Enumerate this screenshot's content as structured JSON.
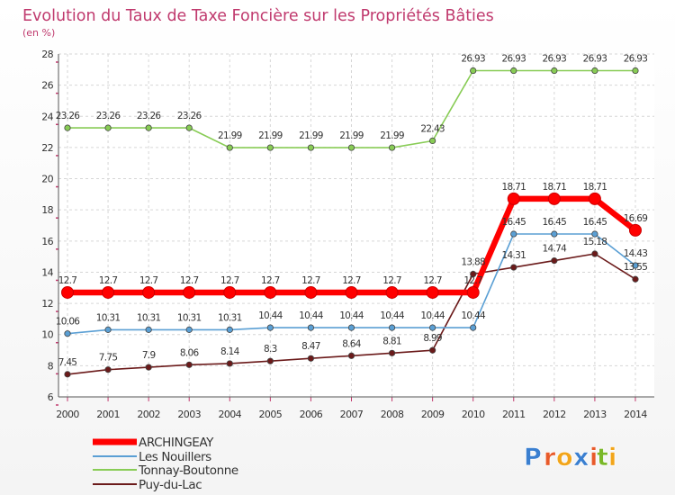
{
  "chart_data": {
    "type": "line",
    "title": "Evolution du Taux de Taxe Foncière sur les Propriétés Bâties",
    "ylabel": "(en %)",
    "xlabel": "",
    "x": [
      "2000",
      "2001",
      "2002",
      "2003",
      "2004",
      "2005",
      "2006",
      "2007",
      "2008",
      "2009",
      "2010",
      "2011",
      "2012",
      "2013",
      "2014"
    ],
    "ylim": [
      6,
      28
    ],
    "yticks": [
      6,
      8,
      10,
      12,
      14,
      16,
      18,
      20,
      22,
      24,
      26,
      28
    ],
    "grid": true,
    "series": [
      {
        "name": "ARCHINGEAY",
        "color": "#ff0000",
        "values": [
          12.7,
          12.7,
          12.7,
          12.7,
          12.7,
          12.7,
          12.7,
          12.7,
          12.7,
          12.7,
          12.7,
          18.71,
          18.71,
          18.71,
          16.69
        ],
        "labels": [
          "12.7",
          "12.7",
          "12.7",
          "12.7",
          "12.7",
          "12.7",
          "12.7",
          "12.7",
          "12.7",
          "12.7",
          "12.7",
          "18.71",
          "18.71",
          "18.71",
          "16.69"
        ]
      },
      {
        "name": "Les Nouillers",
        "color": "#5a9fd4",
        "values": [
          10.06,
          10.31,
          10.31,
          10.31,
          10.31,
          10.44,
          10.44,
          10.44,
          10.44,
          10.44,
          10.44,
          16.45,
          16.45,
          16.45,
          14.43
        ],
        "labels": [
          "10.06",
          "10.31",
          "10.31",
          "10.31",
          "10.31",
          "10.44",
          "10.44",
          "10.44",
          "10.44",
          "10.44",
          "10.44",
          "16.45",
          "16.45",
          "16.45",
          "14.43"
        ]
      },
      {
        "name": "Tonnay-Boutonne",
        "color": "#88cc55",
        "values": [
          23.26,
          23.26,
          23.26,
          23.26,
          21.99,
          21.99,
          21.99,
          21.99,
          21.99,
          22.43,
          26.93,
          26.93,
          26.93,
          26.93,
          26.93
        ],
        "labels": [
          "23.26",
          "23.26",
          "23.26",
          "23.26",
          "21.99",
          "21.99",
          "21.99",
          "21.99",
          "21.99",
          "22.43",
          "26.93",
          "26.93",
          "26.93",
          "26.93",
          "26.93"
        ]
      },
      {
        "name": "Puy-du-Lac",
        "color": "#6b1a1a",
        "values": [
          7.45,
          7.75,
          7.9,
          8.06,
          8.14,
          8.3,
          8.47,
          8.64,
          8.81,
          8.99,
          13.88,
          14.31,
          14.74,
          15.18,
          13.55
        ],
        "labels": [
          "7.45",
          "7.75",
          "7.9",
          "8.06",
          "8.14",
          "8.3",
          "8.47",
          "8.64",
          "8.81",
          "8.99",
          "13.88",
          "14.31",
          "14.74",
          "15.18",
          "13.55"
        ]
      }
    ],
    "legend": "bottom-left"
  },
  "branding": {
    "logo_text": "Proxiti",
    "logo_letters": [
      "P",
      "r",
      "o",
      "x",
      "i",
      "t",
      "i"
    ],
    "logo_colors": [
      "#3a7fd0",
      "#e85a2a",
      "#f2a51a",
      "#3a7fd0",
      "#e85a2a",
      "#7ab828",
      "#f2a51a"
    ]
  }
}
